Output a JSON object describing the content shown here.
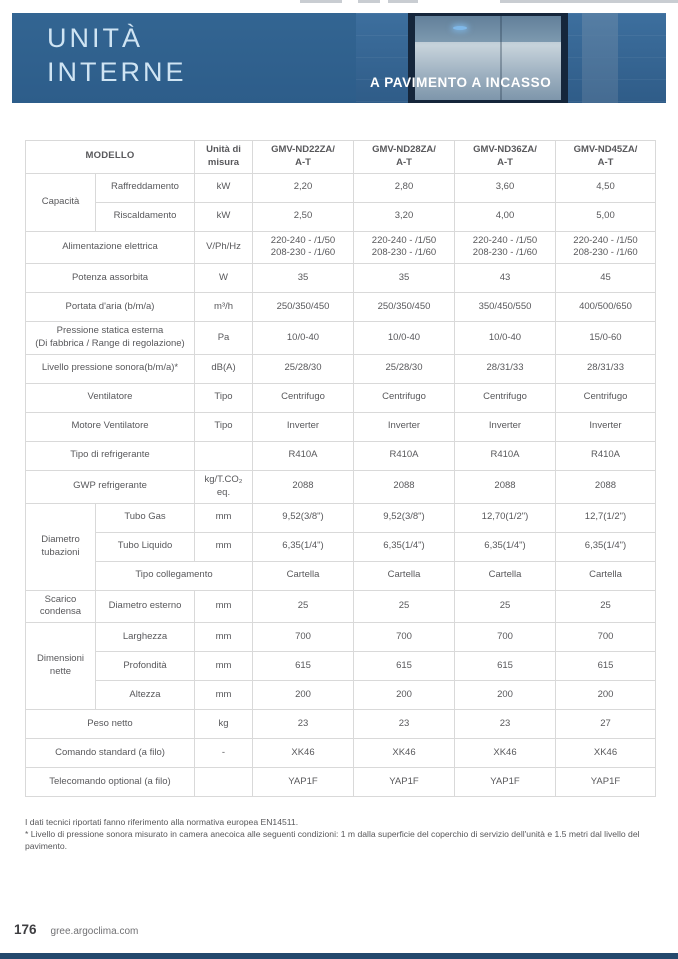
{
  "banner": {
    "title_line1": "UNITÀ",
    "title_line2": "INTERNE",
    "subtitle": "A PAVIMENTO A INCASSO",
    "bg_color": "#2e5f8c"
  },
  "table": {
    "header": {
      "model_label": "MODELLO",
      "unit_label": "Unità di misura",
      "models": [
        {
          "line1": "GMV-ND22ZA/",
          "line2": "A-T"
        },
        {
          "line1": "GMV-ND28ZA/",
          "line2": "A-T"
        },
        {
          "line1": "GMV-ND36ZA/",
          "line2": "A-T"
        },
        {
          "line1": "GMV-ND45ZA/",
          "line2": "A-T"
        }
      ]
    },
    "rows": [
      {
        "group": "Capacità",
        "group_span": 2,
        "in_group": true,
        "label": "Raffreddamento",
        "unit": "kW",
        "values": [
          "2,20",
          "2,80",
          "3,60",
          "4,50"
        ]
      },
      {
        "in_group": true,
        "label": "Riscaldamento",
        "unit": "kW",
        "values": [
          "2,50",
          "3,20",
          "4,00",
          "5,00"
        ]
      },
      {
        "label": "Alimentazione elettrica",
        "unit": "V/Ph/Hz",
        "tall": 2,
        "values": [
          [
            "220-240 - /1/50",
            "208-230 - /1/60"
          ],
          [
            "220-240 - /1/50",
            "208-230 - /1/60"
          ],
          [
            "220-240 - /1/50",
            "208-230 - /1/60"
          ],
          [
            "220-240 - /1/50",
            "208-230 - /1/60"
          ]
        ]
      },
      {
        "label": "Potenza assorbita",
        "unit": "W",
        "values": [
          "35",
          "35",
          "43",
          "45"
        ]
      },
      {
        "label": "Portata d'aria  (b/m/a)",
        "unit": "m³/h",
        "values": [
          "250/350/450",
          "250/350/450",
          "350/450/550",
          "400/500/650"
        ]
      },
      {
        "label": [
          "Pressione statica esterna",
          "(Di fabbrica / Range di regolazione)"
        ],
        "unit": "Pa",
        "tall": 1,
        "values": [
          "10/0-40",
          "10/0-40",
          "10/0-40",
          "15/0-60"
        ]
      },
      {
        "label": "Livello pressione sonora(b/m/a)*",
        "unit": "dB(A)",
        "values": [
          "25/28/30",
          "25/28/30",
          "28/31/33",
          "28/31/33"
        ]
      },
      {
        "label": "Ventilatore",
        "unit": "Tipo",
        "values": [
          "Centrifugo",
          "Centrifugo",
          "Centrifugo",
          "Centrifugo"
        ]
      },
      {
        "label": "Motore Ventilatore",
        "unit": "Tipo",
        "values": [
          "Inverter",
          "Inverter",
          "Inverter",
          "Inverter"
        ]
      },
      {
        "label": "Tipo di refrigerante",
        "unit": "",
        "values": [
          "R410A",
          "R410A",
          "R410A",
          "R410A"
        ]
      },
      {
        "label": "GWP refrigerante",
        "unit": "kg/T.CO₂ eq.",
        "values": [
          "2088",
          "2088",
          "2088",
          "2088"
        ]
      },
      {
        "group": "Diametro tubazioni",
        "group_span": 3,
        "in_group": true,
        "label": "Tubo Gas",
        "unit": "mm",
        "values": [
          "9,52(3/8\")",
          "9,52(3/8\")",
          "12,70(1/2\")",
          "12,7(1/2\")"
        ]
      },
      {
        "in_group": true,
        "label": "Tubo Liquido",
        "unit": "mm",
        "values": [
          "6,35(1/4\")",
          "6,35(1/4\")",
          "6,35(1/4\")",
          "6,35(1/4\")"
        ]
      },
      {
        "in_group": true,
        "merge_unit": true,
        "label": "Tipo collegamento",
        "values": [
          "Cartella",
          "Cartella",
          "Cartella",
          "Cartella"
        ]
      },
      {
        "group": "Scarico condensa",
        "group_span": 1,
        "in_group": true,
        "label": "Diametro esterno",
        "unit": "mm",
        "values": [
          "25",
          "25",
          "25",
          "25"
        ]
      },
      {
        "group": "Dimensioni nette",
        "group_span": 3,
        "in_group": true,
        "label": "Larghezza",
        "unit": "mm",
        "values": [
          "700",
          "700",
          "700",
          "700"
        ]
      },
      {
        "in_group": true,
        "label": "Profondità",
        "unit": "mm",
        "values": [
          "615",
          "615",
          "615",
          "615"
        ]
      },
      {
        "in_group": true,
        "label": "Altezza",
        "unit": "mm",
        "values": [
          "200",
          "200",
          "200",
          "200"
        ]
      },
      {
        "label": "Peso netto",
        "unit": "kg",
        "values": [
          "23",
          "23",
          "23",
          "27"
        ]
      },
      {
        "label": "Comando standard (a filo)",
        "unit": "-",
        "values": [
          "XK46",
          "XK46",
          "XK46",
          "XK46"
        ]
      },
      {
        "label": "Telecomando optional (a filo)",
        "unit": "",
        "values": [
          "YAP1F",
          "YAP1F",
          "YAP1F",
          "YAP1F"
        ]
      }
    ]
  },
  "notes": [
    "I dati tecnici riportati fanno riferimento alla normativa europea EN14511.",
    "* Livello di pressione sonora misurato in camera anecoica alle seguenti condizioni: 1 m dalla superficie del coperchio di servizio dell'unità e 1.5 metri dal livello del pavimento."
  ],
  "footer": {
    "page_number": "176",
    "website": "gree.argoclima.com"
  },
  "colors": {
    "banner_blue": "#2e5f8c",
    "header_text_blue": "#0b5aa5",
    "body_text": "#58585b",
    "table_border": "#d9d9d9",
    "bottom_strip": "#24496d"
  }
}
